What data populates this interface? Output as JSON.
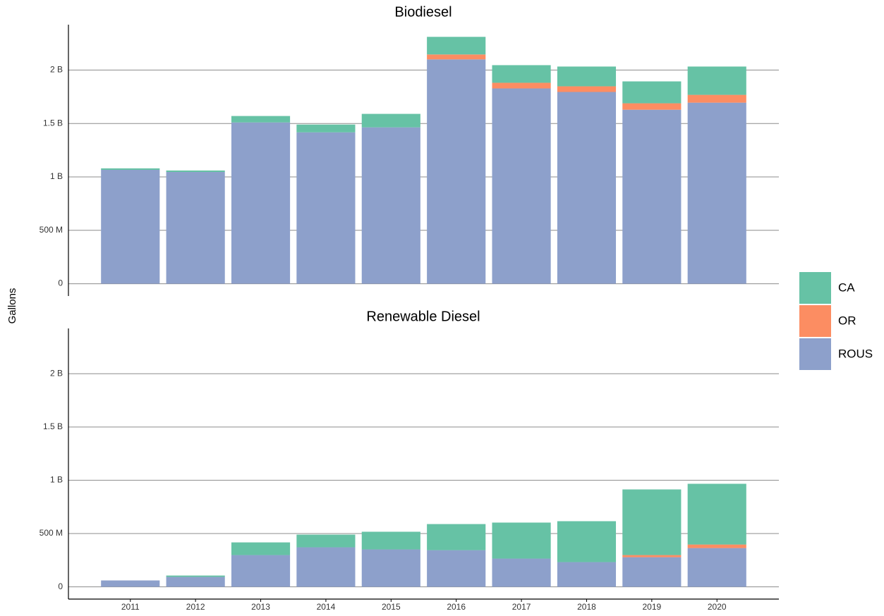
{
  "chart_data": {
    "type": "bar",
    "stacked": true,
    "y_label": "Gallons",
    "categories": [
      "2011",
      "2012",
      "2013",
      "2014",
      "2015",
      "2016",
      "2017",
      "2018",
      "2019",
      "2020"
    ],
    "panels": [
      {
        "title": "Biodiesel",
        "ylim": [
          -115,
          2425
        ],
        "yticks": [
          0,
          {
            "value": 500,
            "label": "500 M"
          },
          {
            "value": 1000,
            "label": "1 B"
          },
          {
            "value": 1500,
            "label": "1.5 B"
          },
          {
            "value": 2000,
            "label": "2 B"
          }
        ],
        "series": [
          {
            "name": "CA",
            "color": "#66c2a5",
            "values": [
              14,
              14,
              60,
              73,
              126,
              165,
              165,
              185,
              205,
              265
            ]
          },
          {
            "name": "OR",
            "color": "#fc8d62",
            "values": [
              0,
              0,
              0,
              0,
              0,
              46,
              53,
              53,
              60,
              73
            ]
          },
          {
            "name": "ROUS",
            "color": "#8da0cb",
            "values": [
              1066,
              1046,
              1510,
              1417,
              1464,
              2100,
              1828,
              1795,
              1629,
              1695
            ]
          }
        ]
      },
      {
        "title": "Renewable Diesel",
        "ylim": [
          -115,
          2425
        ],
        "yticks": [
          0,
          {
            "value": 500,
            "label": "500 M"
          },
          {
            "value": 1000,
            "label": "1 B"
          },
          {
            "value": 1500,
            "label": "1.5 B"
          },
          {
            "value": 2000,
            "label": "2 B"
          }
        ],
        "series": [
          {
            "name": "CA",
            "color": "#66c2a5",
            "values": [
              0,
              13,
              119,
              119,
              166,
              245,
              338,
              384,
              616,
              570
            ]
          },
          {
            "name": "OR",
            "color": "#fc8d62",
            "values": [
              0,
              0,
              0,
              0,
              0,
              0,
              0,
              0,
              20,
              33
            ]
          },
          {
            "name": "ROUS",
            "color": "#8da0cb",
            "values": [
              60,
              93,
              298,
              371,
              351,
              344,
              265,
              232,
              278,
              364
            ]
          }
        ]
      }
    ]
  }
}
